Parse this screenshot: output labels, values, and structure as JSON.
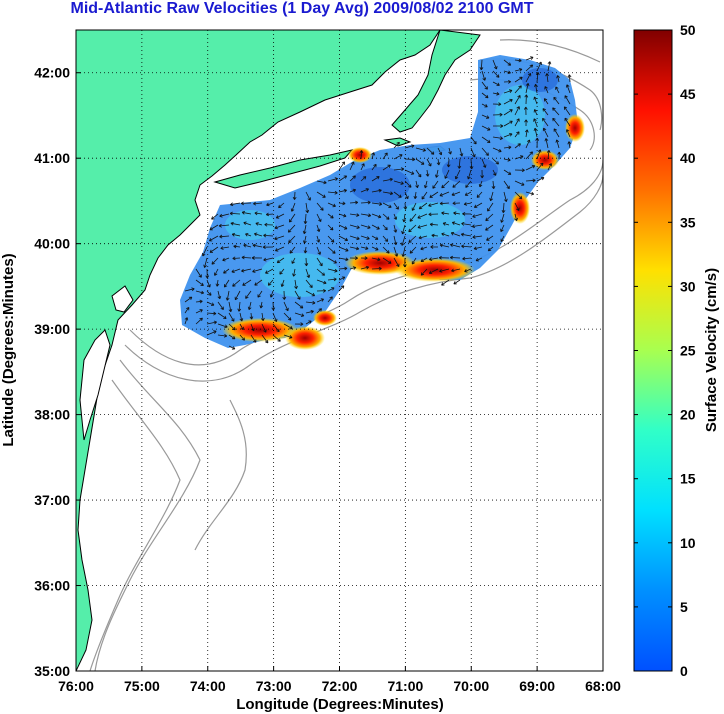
{
  "title": "Mid-Atlantic Raw Velocities (1 Day Avg) 2009/08/02 2100 GMT",
  "map": {
    "xlabel": "Longitude (Degrees:Minutes)",
    "ylabel": "Latitude (Degrees:Minutes)",
    "lon_range": [
      -76,
      -68
    ],
    "lat_range": [
      35,
      42.5
    ],
    "lon_ticks": [
      "76:00",
      "75:00",
      "74:00",
      "73:00",
      "72:00",
      "71:00",
      "70:00",
      "69:00",
      "68:00"
    ],
    "lat_ticks": [
      "35:00",
      "36:00",
      "37:00",
      "38:00",
      "39:00",
      "40:00",
      "41:00",
      "42:00"
    ],
    "grid": true,
    "land_color": "#55eeaa"
  },
  "colorbar": {
    "label": "Surface Velocity (cm/s)",
    "range": [
      0,
      50
    ],
    "ticks": [
      "0",
      "5",
      "10",
      "15",
      "20",
      "25",
      "30",
      "35",
      "40",
      "45",
      "50"
    ],
    "colormap": "jet"
  }
}
